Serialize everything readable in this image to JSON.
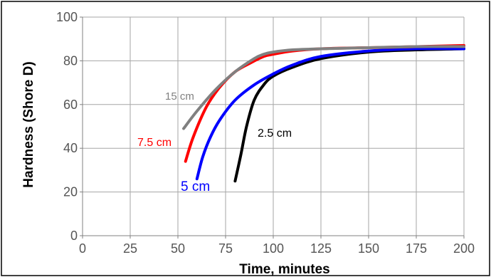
{
  "chart_data": {
    "type": "line",
    "xlabel": "Time, minutes",
    "ylabel": "Hardness (Shore D)",
    "xlim": [
      0,
      200
    ],
    "ylim": [
      0,
      100
    ],
    "x_ticks": [
      "0",
      "25",
      "50",
      "75",
      "100",
      "125",
      "150",
      "175",
      "200"
    ],
    "y_ticks": [
      "0",
      "20",
      "40",
      "60",
      "80",
      "100"
    ],
    "grid": true,
    "legend": "none",
    "series": [
      {
        "name": "15 cm",
        "color": "#808080",
        "x": [
          53,
          60,
          70,
          80,
          90,
          95,
          100,
          110,
          125,
          150,
          175,
          200
        ],
        "y": [
          49,
          57,
          67,
          75,
          81,
          83,
          84,
          85,
          85.5,
          86,
          86.5,
          86.5
        ]
      },
      {
        "name": "7.5 cm",
        "color": "#ff0000",
        "x": [
          54,
          58,
          65,
          72,
          80,
          88,
          95,
          100,
          110,
          125,
          150,
          175,
          200
        ],
        "y": [
          34,
          45,
          59,
          68,
          75,
          79,
          82,
          83,
          84.5,
          85.5,
          86,
          86.5,
          87
        ]
      },
      {
        "name": "5 cm",
        "color": "#0000ff",
        "x": [
          60,
          63,
          67,
          72,
          80,
          90,
          100,
          110,
          125,
          150,
          175,
          200
        ],
        "y": [
          26,
          36,
          45,
          53,
          62,
          69,
          74,
          78,
          82,
          84.5,
          85.5,
          85.5
        ]
      },
      {
        "name": "2.5 cm",
        "color": "#000000",
        "x": [
          80,
          83,
          86,
          90,
          95,
          100,
          110,
          125,
          150,
          175,
          200
        ],
        "y": [
          25,
          37,
          50,
          62,
          69,
          73,
          77,
          81,
          84,
          85,
          85.5
        ]
      }
    ],
    "annotations": [
      {
        "text": "15 cm",
        "color": "#808080"
      },
      {
        "text": "7.5 cm",
        "color": "#ff0000"
      },
      {
        "text": "5 cm",
        "color": "#0000ff"
      },
      {
        "text": "2.5 cm",
        "color": "#000000"
      }
    ]
  }
}
